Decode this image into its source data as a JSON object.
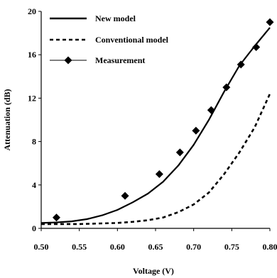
{
  "chart_data": {
    "type": "line",
    "title": "",
    "xlabel": "Voltage (V)",
    "ylabel": "Attenuation (dB)",
    "xlim": [
      0.5,
      0.8
    ],
    "ylim": [
      0,
      20
    ],
    "xticks": [
      "0.50",
      "0.55",
      "0.60",
      "0.65",
      "0.70",
      "0.75",
      "0.80"
    ],
    "yticks": [
      "0",
      "4",
      "8",
      "12",
      "16",
      "20"
    ],
    "grid": false,
    "legend_position": "top-left",
    "series": [
      {
        "name": "New model",
        "style": "solid",
        "x": [
          0.5,
          0.52,
          0.54,
          0.56,
          0.58,
          0.6,
          0.62,
          0.64,
          0.66,
          0.68,
          0.7,
          0.72,
          0.74,
          0.76,
          0.78,
          0.8
        ],
        "y": [
          0.5,
          0.55,
          0.65,
          0.85,
          1.2,
          1.7,
          2.4,
          3.2,
          4.3,
          5.8,
          7.7,
          10.0,
          12.6,
          15.0,
          16.8,
          18.5
        ]
      },
      {
        "name": "Conventional model",
        "style": "dashed",
        "x": [
          0.5,
          0.55,
          0.6,
          0.62,
          0.64,
          0.66,
          0.68,
          0.7,
          0.72,
          0.74,
          0.76,
          0.78,
          0.8
        ],
        "y": [
          0.4,
          0.4,
          0.5,
          0.6,
          0.75,
          1.0,
          1.5,
          2.2,
          3.3,
          5.0,
          7.0,
          9.3,
          12.4
        ]
      },
      {
        "name": "Measurement",
        "style": "diamond-markers",
        "x": [
          0.52,
          0.61,
          0.655,
          0.682,
          0.703,
          0.723,
          0.743,
          0.762,
          0.782,
          0.8
        ],
        "y": [
          1.0,
          3.0,
          5.0,
          7.0,
          9.0,
          10.9,
          13.0,
          15.1,
          16.7,
          19.0
        ]
      }
    ]
  }
}
